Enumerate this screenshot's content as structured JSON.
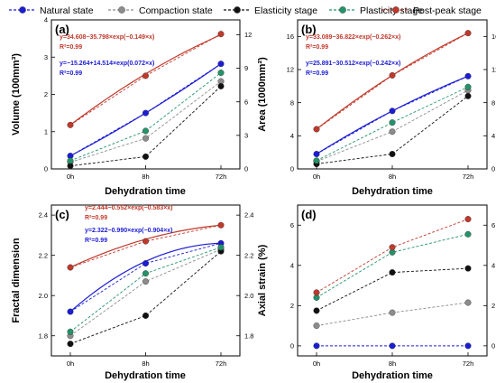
{
  "legend": [
    {
      "key": "natural",
      "label": "Natural state",
      "color": "#1c1cd6"
    },
    {
      "key": "compaction",
      "label": "Compaction state",
      "color": "#8c8c8c"
    },
    {
      "key": "elasticity",
      "label": "Elasticity stage",
      "color": "#111111"
    },
    {
      "key": "plasticity",
      "label": "Plasticity stage",
      "color": "#23936a"
    },
    {
      "key": "postpeak",
      "label": "Post-peak stage",
      "color": "#c0392b"
    }
  ],
  "chart_data": [
    {
      "panel": "(a)",
      "type": "line",
      "xlabel": "Dehydration time",
      "ylabel": "Volume (100mm³)",
      "categories": [
        "0h",
        "8h",
        "72h"
      ],
      "ylim_left": [
        0,
        4
      ],
      "yticks_left": [
        "0",
        "1",
        "2",
        "3",
        "4"
      ],
      "ylim_right": [
        0,
        13.33
      ],
      "yticks_right": [
        "0",
        "3",
        "6",
        "9",
        "12"
      ],
      "series": [
        {
          "key": "natural",
          "values": [
            0.35,
            1.5,
            2.82
          ]
        },
        {
          "key": "compaction",
          "values": [
            0.18,
            0.82,
            2.35
          ]
        },
        {
          "key": "elasticity",
          "values": [
            0.08,
            0.33,
            2.22
          ]
        },
        {
          "key": "plasticity",
          "values": [
            0.22,
            1.02,
            2.58
          ]
        },
        {
          "key": "postpeak",
          "values": [
            1.18,
            2.5,
            3.62
          ]
        }
      ],
      "fits": [
        {
          "key": "postpeak",
          "equation": "y=34.608−35.798×exp(−0.149×x)",
          "r2": "R²=0.99",
          "values": [
            1.18,
            2.55,
            3.6
          ]
        },
        {
          "key": "natural",
          "equation": "y=−15.264+14.514×exp(0.072×x)",
          "r2": "R²=0.99",
          "values": [
            0.35,
            1.5,
            2.82
          ]
        }
      ]
    },
    {
      "panel": "(b)",
      "type": "line",
      "xlabel": "Dehydration time",
      "ylabel": "Area (1000mm²)",
      "categories": [
        "0h",
        "8h",
        "72h"
      ],
      "ylim_left": [
        0,
        18
      ],
      "yticks_left": [
        "0",
        "4",
        "8",
        "12",
        "16"
      ],
      "ylim_right": [
        0,
        18
      ],
      "yticks_right": [
        "0",
        "4",
        "8",
        "12",
        "16"
      ],
      "series": [
        {
          "key": "natural",
          "values": [
            1.8,
            7.0,
            11.2
          ]
        },
        {
          "key": "compaction",
          "values": [
            0.9,
            4.5,
            9.5
          ]
        },
        {
          "key": "elasticity",
          "values": [
            0.6,
            1.8,
            8.8
          ]
        },
        {
          "key": "plasticity",
          "values": [
            1.0,
            5.6,
            9.9
          ]
        },
        {
          "key": "postpeak",
          "values": [
            4.8,
            11.3,
            16.4
          ]
        }
      ],
      "fits": [
        {
          "key": "postpeak",
          "equation": "y=33.089−36.822×exp(−0.262×x)",
          "r2": "R²=0.99",
          "values": [
            4.8,
            11.3,
            16.4
          ]
        },
        {
          "key": "natural",
          "equation": "y=25.891−30.512×exp(−0.242×x)",
          "r2": "R²=0.99",
          "values": [
            1.8,
            7.0,
            11.2
          ]
        }
      ]
    },
    {
      "panel": "(c)",
      "type": "line",
      "xlabel": "Dehydration time",
      "ylabel": "Fractal dimension",
      "categories": [
        "0h",
        "8h",
        "72h"
      ],
      "ylim_left": [
        1.7,
        2.45
      ],
      "yticks_left": [
        "1.8",
        "2.0",
        "2.2",
        "2.4"
      ],
      "ylim_right": [
        1.7,
        2.45
      ],
      "yticks_right": [
        "1.8",
        "2.0",
        "2.2",
        "2.4"
      ],
      "series": [
        {
          "key": "natural",
          "values": [
            1.92,
            2.16,
            2.26
          ]
        },
        {
          "key": "compaction",
          "values": [
            1.8,
            2.07,
            2.23
          ]
        },
        {
          "key": "elasticity",
          "values": [
            1.76,
            1.9,
            2.22
          ]
        },
        {
          "key": "plasticity",
          "values": [
            1.82,
            2.11,
            2.24
          ]
        },
        {
          "key": "postpeak",
          "values": [
            2.14,
            2.27,
            2.35
          ]
        }
      ],
      "fits": [
        {
          "key": "postpeak",
          "equation": "y=2.444−0.552×exp(−0.583×x)",
          "r2": "R²=0.99",
          "values": [
            2.14,
            2.28,
            2.35
          ]
        },
        {
          "key": "natural",
          "equation": "y=2.322−0.990×exp(−0.904×x)",
          "r2": "R²=0.99",
          "values": [
            1.92,
            2.17,
            2.26
          ]
        }
      ]
    },
    {
      "panel": "(d)",
      "type": "line",
      "xlabel": "Dehydration time",
      "ylabel": "Axial strain (%)",
      "categories": [
        "0h",
        "8h",
        "72h"
      ],
      "ylim_left": [
        -0.5,
        7
      ],
      "yticks_left": [
        "0",
        "2",
        "4",
        "6"
      ],
      "ylim_right": [
        -0.5,
        7
      ],
      "yticks_right": [
        "0",
        "2",
        "4",
        "6"
      ],
      "series": [
        {
          "key": "natural",
          "values": [
            0.0,
            0.0,
            0.0
          ]
        },
        {
          "key": "compaction",
          "values": [
            1.0,
            1.65,
            2.15
          ]
        },
        {
          "key": "elasticity",
          "values": [
            1.75,
            3.65,
            3.85
          ]
        },
        {
          "key": "plasticity",
          "values": [
            2.4,
            4.65,
            5.55
          ]
        },
        {
          "key": "postpeak",
          "values": [
            2.65,
            4.9,
            6.3
          ]
        }
      ],
      "fits": []
    }
  ]
}
